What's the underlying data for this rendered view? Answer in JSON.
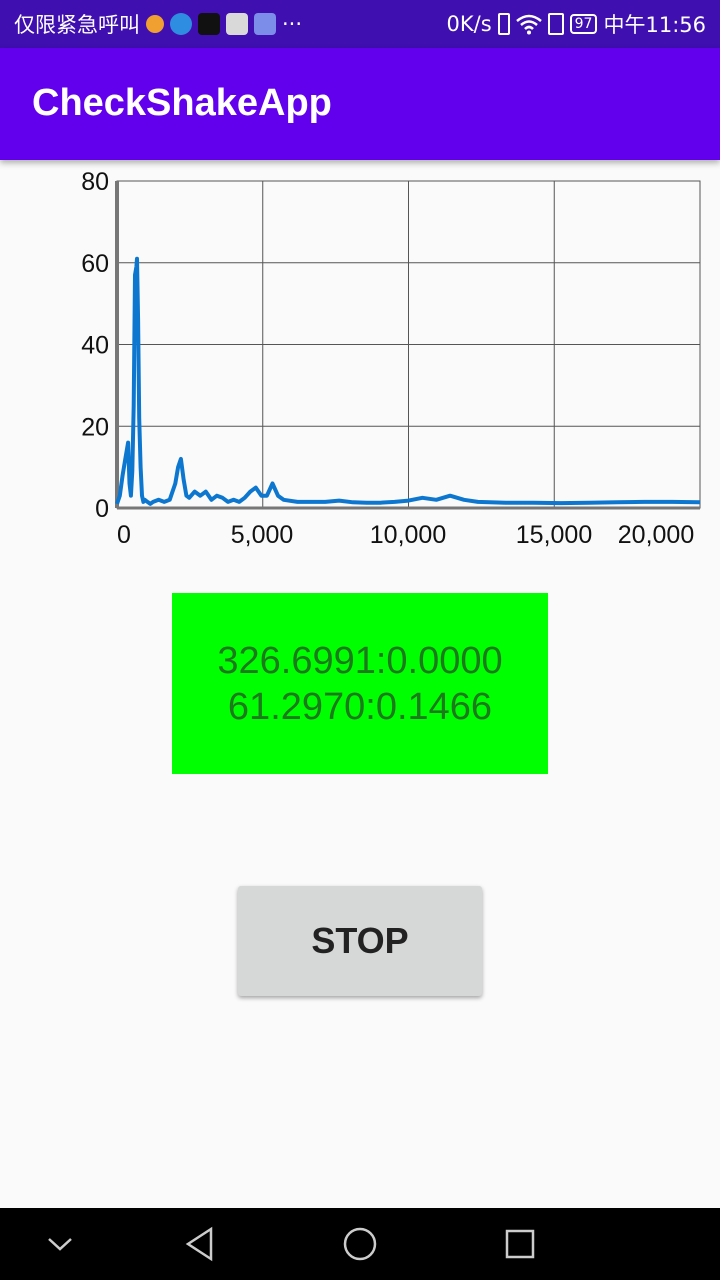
{
  "status_bar": {
    "carrier": "仅限紧急呼叫",
    "network_speed": "0K/s",
    "battery": "97",
    "time": "中午11:56",
    "more": "···"
  },
  "app_bar": {
    "title": "CheckShakeApp"
  },
  "chart_data": {
    "type": "line",
    "title": "",
    "xlabel": "",
    "ylabel": "",
    "xlim": [
      0,
      21000
    ],
    "ylim": [
      0,
      80
    ],
    "x_ticks": [
      0,
      5000,
      10000,
      15000,
      20000
    ],
    "x_tick_labels": [
      "0",
      "5,000",
      "10,000",
      "15,000",
      "20,000"
    ],
    "y_ticks": [
      0,
      20,
      40,
      60,
      80
    ],
    "y_tick_labels": [
      "0",
      "20",
      "40",
      "60",
      "80"
    ],
    "grid": true,
    "series_color": "#0d77d0",
    "series": [
      {
        "x": [
          0,
          100,
          200,
          300,
          400,
          450,
          500,
          550,
          600,
          650,
          700,
          720,
          760,
          800,
          850,
          900,
          950,
          1000,
          1100,
          1200,
          1300,
          1500,
          1700,
          1900,
          2000,
          2100,
          2200,
          2300,
          2400,
          2500,
          2600,
          2800,
          3000,
          3200,
          3400,
          3600,
          3800,
          4000,
          4200,
          4400,
          4600,
          4800,
          5000,
          5200,
          5400,
          5600,
          5800,
          6000,
          6500,
          7000,
          7500,
          8000,
          8500,
          9000,
          9500,
          10000,
          10500,
          11000,
          11500,
          12000,
          12500,
          13000,
          14000,
          15000,
          16000,
          17000,
          18000,
          19000,
          20000,
          21000
        ],
        "values": [
          1,
          3,
          8,
          12,
          16,
          6,
          3,
          9,
          25,
          57,
          59,
          61,
          46,
          22,
          10,
          3,
          1.5,
          2,
          1.5,
          1,
          1.5,
          2,
          1.5,
          2,
          4,
          6,
          10,
          12,
          7,
          3,
          2.5,
          4,
          3,
          4,
          2,
          3,
          2.5,
          1.5,
          2,
          1.5,
          2.5,
          4,
          5,
          3,
          3,
          6,
          3,
          2,
          1.5,
          1.5,
          1.5,
          1.8,
          1.4,
          1.3,
          1.3,
          1.5,
          1.8,
          2.5,
          2,
          3,
          2,
          1.5,
          1.3,
          1.3,
          1.2,
          1.3,
          1.4,
          1.5,
          1.5,
          1.4
        ]
      }
    ]
  },
  "readout": {
    "line1": "326.6991:0.0000",
    "line2": "61.2970:0.1466"
  },
  "stop_button": {
    "label": "STOP"
  }
}
